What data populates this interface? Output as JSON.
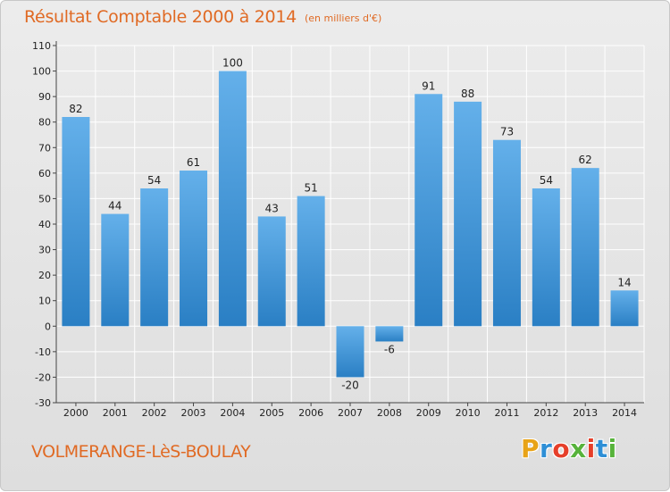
{
  "header": {
    "title": "Résultat Comptable 2000 à 2014",
    "unit": "(en milliers d'€)"
  },
  "footer": {
    "commune": "VOLMERANGE-LèS-BOULAY",
    "logo": {
      "letters": [
        "P",
        "r",
        "o",
        "x",
        "i",
        "t",
        "i"
      ],
      "colors": [
        "#e8a317",
        "#2e8fd6",
        "#e63f2a",
        "#57b33b",
        "#e63f2a",
        "#2e8fd6",
        "#57b33b"
      ]
    }
  },
  "chart_data": {
    "type": "bar",
    "title": "Résultat Comptable 2000 à 2014",
    "subtitle": "(en milliers d'€)",
    "xlabel": "",
    "ylabel": "",
    "categories": [
      "2000",
      "2001",
      "2002",
      "2003",
      "2004",
      "2005",
      "2006",
      "2007",
      "2008",
      "2009",
      "2010",
      "2011",
      "2012",
      "2013",
      "2014"
    ],
    "values": [
      82,
      44,
      54,
      61,
      100,
      43,
      51,
      -20,
      -6,
      91,
      88,
      73,
      54,
      62,
      14
    ],
    "value_labels": [
      "82",
      "44",
      "54",
      "61",
      "100",
      "43",
      "51",
      "-20",
      "-6",
      "91",
      "88",
      "73",
      "54",
      "62",
      "14"
    ],
    "ylim": [
      -30,
      110
    ],
    "yticks": [
      "-30",
      "-20",
      "-10",
      "0",
      "10",
      "20",
      "30",
      "40",
      "50",
      "60",
      "70",
      "80",
      "90",
      "100",
      "110"
    ],
    "grid": true,
    "legend": "none",
    "colors": {
      "bar_light": "#64b0ea",
      "bar_dark": "#2a7fc4",
      "grid": "#ffffff",
      "axis": "#444444",
      "text": "#222222"
    }
  }
}
